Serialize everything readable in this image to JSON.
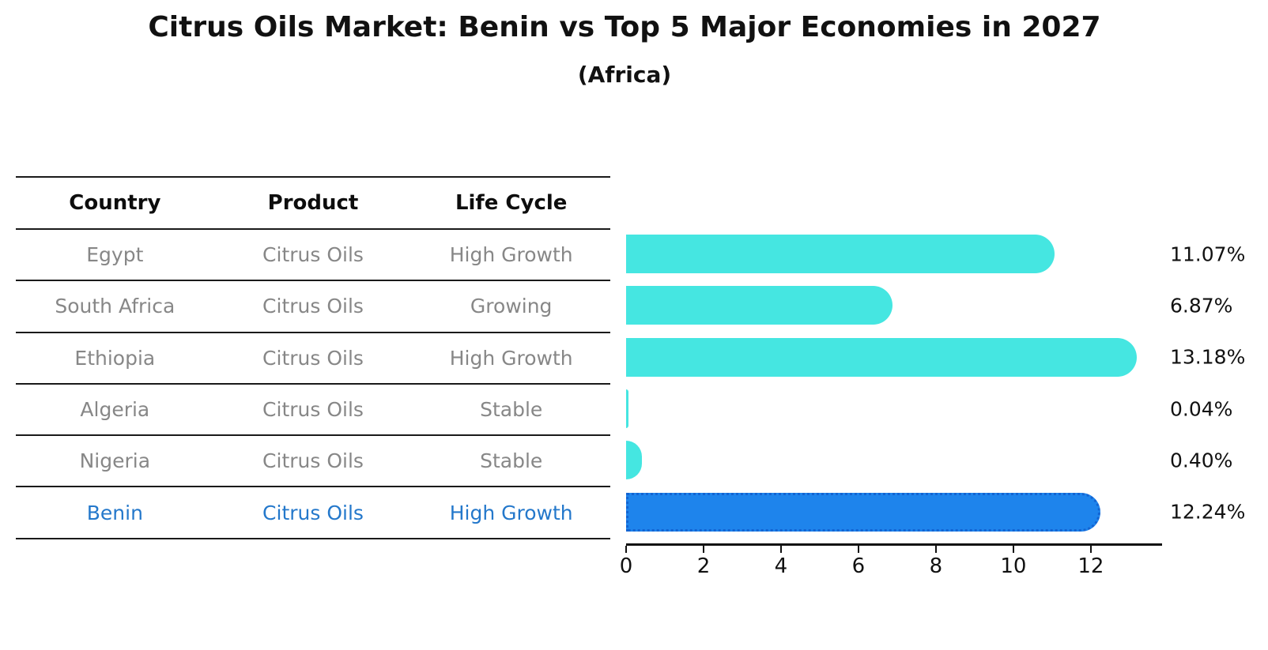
{
  "title": "Citrus Oils Market: Benin vs Top 5 Major Economies in 2027",
  "subtitle": "(Africa)",
  "table": {
    "headers": [
      "Country",
      "Product",
      "Life Cycle"
    ]
  },
  "rows": [
    {
      "country": "Egypt",
      "product": "Citrus Oils",
      "life_cycle": "High Growth",
      "value": 11.07,
      "label": "11.07%",
      "highlight": false
    },
    {
      "country": "South Africa",
      "product": "Citrus Oils",
      "life_cycle": "Growing",
      "value": 6.87,
      "label": "6.87%",
      "highlight": false
    },
    {
      "country": "Ethiopia",
      "product": "Citrus Oils",
      "life_cycle": "High Growth",
      "value": 13.18,
      "label": "13.18%",
      "highlight": false
    },
    {
      "country": "Algeria",
      "product": "Citrus Oils",
      "life_cycle": "Stable",
      "value": 0.04,
      "label": "0.04%",
      "highlight": false
    },
    {
      "country": "Nigeria",
      "product": "Citrus Oils",
      "life_cycle": "Stable",
      "value": 0.4,
      "label": "0.40%",
      "highlight": false
    },
    {
      "country": "Benin",
      "product": "Citrus Oils",
      "life_cycle": "High Growth",
      "value": 12.24,
      "label": "12.24%",
      "highlight": true
    }
  ],
  "chart_data": {
    "type": "bar",
    "orientation": "horizontal",
    "title": "Citrus Oils Market: Benin vs Top 5 Major Economies in 2027",
    "subtitle": "(Africa)",
    "categories": [
      "Egypt",
      "South Africa",
      "Ethiopia",
      "Algeria",
      "Nigeria",
      "Benin"
    ],
    "values": [
      11.07,
      6.87,
      13.18,
      0.04,
      0.4,
      12.24
    ],
    "value_labels": [
      "11.07%",
      "6.87%",
      "13.18%",
      "0.04%",
      "0.40%",
      "12.24%"
    ],
    "xlabel": "",
    "ylabel": "",
    "xlim": [
      0,
      13.84
    ],
    "x_ticks": [
      0,
      2,
      4,
      6,
      8,
      10,
      12
    ],
    "x_tick_labels": [
      "0",
      "2",
      "4",
      "6",
      "8",
      "10",
      "12"
    ],
    "grid": false,
    "legend": false,
    "bar_color": "#45e6e1",
    "highlight_color": "#1e84ec",
    "highlight_edge_color": "#1364d2",
    "highlight_index": 5,
    "highlight_series": "Benin"
  }
}
